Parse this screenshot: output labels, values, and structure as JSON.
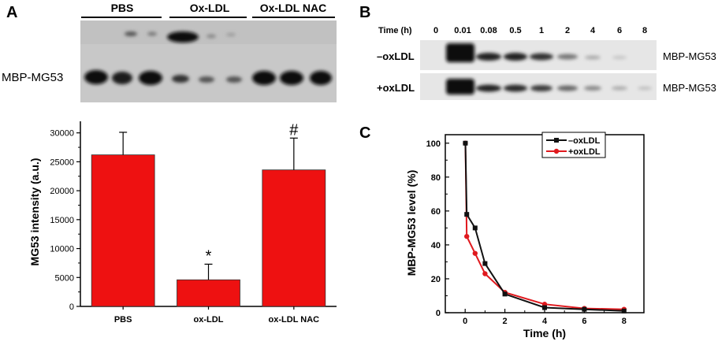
{
  "panels": {
    "a": "A",
    "b": "B",
    "c": "C"
  },
  "blot_a": {
    "groups": [
      "PBS",
      "Ox-LDL",
      "Ox-LDL NAC"
    ],
    "row_label": "MBP-MG53"
  },
  "blot_b": {
    "time_header": "Time (h)",
    "times": [
      "0",
      "0.01",
      "0.08",
      "0.5",
      "1",
      "2",
      "4",
      "6",
      "8"
    ],
    "rows": [
      "–oxLDL",
      "+oxLDL"
    ],
    "band_label": "MBP-MG53"
  },
  "colors": {
    "bar": "#ee1111",
    "minus_oxldl": "#111111",
    "plus_oxldl": "#e0191e"
  },
  "chart_data": [
    {
      "type": "bar",
      "categories": [
        "PBS",
        "ox-LDL",
        "ox-LDL NAC"
      ],
      "values": [
        26200,
        4600,
        23600
      ],
      "error": [
        3900,
        2700,
        5500
      ],
      "annotations": [
        "",
        "*",
        "#"
      ],
      "ylabel": "MG53 intensity (a.u.)",
      "yticks": [
        "0",
        "5000",
        "10000",
        "15000",
        "20000",
        "25000",
        "30000"
      ],
      "ylim": [
        0,
        32000
      ],
      "grid": false
    },
    {
      "type": "line",
      "xlabel": "Time (h)",
      "ylabel": "MBP-MG53 level (%)",
      "xlim": [
        -1,
        9
      ],
      "ylim": [
        0,
        105
      ],
      "xticks": [
        "0",
        "2",
        "4",
        "6",
        "8"
      ],
      "yticks": [
        "0",
        "20",
        "40",
        "60",
        "80",
        "100"
      ],
      "legend_position": "top-right",
      "grid": false,
      "series": [
        {
          "name": "–oxLDL",
          "x": [
            0.01,
            0.08,
            0.5,
            1,
            2,
            4,
            6,
            8
          ],
          "y": [
            100,
            58,
            50,
            29,
            11,
            3,
            2,
            1
          ]
        },
        {
          "name": "+oxLDL",
          "x": [
            0.01,
            0.08,
            0.5,
            1,
            2,
            4,
            6,
            8
          ],
          "y": [
            100,
            45,
            35,
            23,
            12,
            5,
            2.5,
            2
          ]
        }
      ]
    }
  ]
}
